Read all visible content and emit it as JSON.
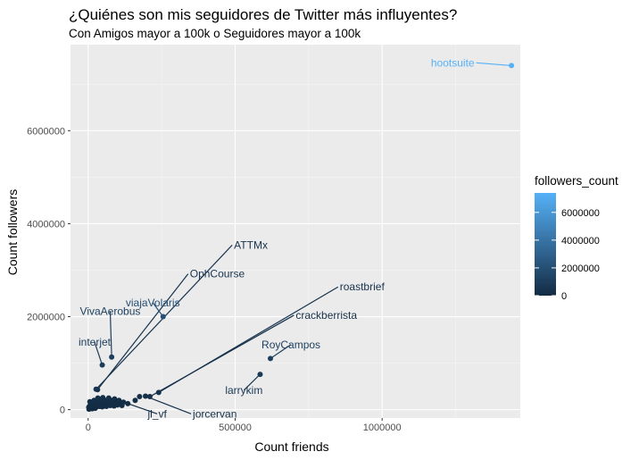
{
  "chart_data": {
    "type": "scatter",
    "title": "¿Quiénes son mis seguidores de Twitter más influyentes?",
    "subtitle": "Con Amigos mayor a 100k o Seguidores mayor a 100k",
    "xlabel": "Count friends",
    "ylabel": "Count followers",
    "xlim": [
      -60000,
      1470000
    ],
    "ylim": [
      -180000,
      7850000
    ],
    "x_ticks": [
      0,
      500000,
      1000000
    ],
    "x_tick_labels": [
      "0",
      "500000",
      "1000000"
    ],
    "y_ticks": [
      0,
      2000000,
      4000000,
      6000000
    ],
    "y_tick_labels": [
      "0",
      "2000000",
      "4000000",
      "6000000"
    ],
    "grid": true,
    "legend": {
      "title": "followers_count",
      "position": "right",
      "color_low": "#132B43",
      "color_high": "#56B1F7",
      "range": [
        0,
        7400000
      ],
      "ticks": [
        0,
        2000000,
        4000000,
        6000000
      ],
      "tick_labels": [
        "0",
        "2000000",
        "4000000",
        "6000000"
      ]
    },
    "points": [
      {
        "x": 1440000,
        "y": 7400000,
        "label": "hootsuite",
        "lx": 1320000,
        "ly": 7460000,
        "ha": "end"
      },
      {
        "x": 27000,
        "y": 440000,
        "label": "ATTMx",
        "lx": 490000,
        "ly": 3540000,
        "ha": "start"
      },
      {
        "x": 32000,
        "y": 430000,
        "label": "OphCourse",
        "lx": 340000,
        "ly": 2920000,
        "ha": "start"
      },
      {
        "x": 255000,
        "y": 2000000,
        "label": "viajaVolaris",
        "lx": 220000,
        "ly": 2300000,
        "ha": "middle"
      },
      {
        "x": 80000,
        "y": 1130000,
        "label": "VivaAerobus",
        "lx": 75000,
        "ly": 2120000,
        "ha": "middle"
      },
      {
        "x": 48000,
        "y": 960000,
        "label": "interjet",
        "lx": 22000,
        "ly": 1450000,
        "ha": "middle"
      },
      {
        "x": 240000,
        "y": 370000,
        "label": "roastbrief",
        "lx": 850000,
        "ly": 2640000,
        "ha": "start"
      },
      {
        "x": 210000,
        "y": 280000,
        "label": "crackberrista",
        "lx": 700000,
        "ly": 2030000,
        "ha": "start"
      },
      {
        "x": 620000,
        "y": 1100000,
        "label": "RoyCampos",
        "lx": 690000,
        "ly": 1400000,
        "ha": "middle"
      },
      {
        "x": 585000,
        "y": 760000,
        "label": "larrykim",
        "lx": 530000,
        "ly": 420000,
        "ha": "middle"
      },
      {
        "x": 135000,
        "y": 130000,
        "label": "jl_vf",
        "lx": 235000,
        "ly": -90000,
        "ha": "middle"
      },
      {
        "x": 195000,
        "y": 290000,
        "label": "jorcervan",
        "lx": 350000,
        "ly": -90000,
        "ha": "start"
      },
      {
        "x": 2000,
        "y": 50000
      },
      {
        "x": 5000,
        "y": 80000
      },
      {
        "x": 8000,
        "y": 30000
      },
      {
        "x": 10000,
        "y": 120000
      },
      {
        "x": 12000,
        "y": 60000
      },
      {
        "x": 15000,
        "y": 150000
      },
      {
        "x": 18000,
        "y": 40000
      },
      {
        "x": 20000,
        "y": 200000
      },
      {
        "x": 22000,
        "y": 90000
      },
      {
        "x": 25000,
        "y": 130000
      },
      {
        "x": 28000,
        "y": 60000
      },
      {
        "x": 30000,
        "y": 180000
      },
      {
        "x": 33000,
        "y": 250000
      },
      {
        "x": 35000,
        "y": 100000
      },
      {
        "x": 38000,
        "y": 70000
      },
      {
        "x": 40000,
        "y": 140000
      },
      {
        "x": 42000,
        "y": 220000
      },
      {
        "x": 45000,
        "y": 110000
      },
      {
        "x": 48000,
        "y": 60000
      },
      {
        "x": 50000,
        "y": 260000
      },
      {
        "x": 52000,
        "y": 160000
      },
      {
        "x": 55000,
        "y": 90000
      },
      {
        "x": 58000,
        "y": 200000
      },
      {
        "x": 60000,
        "y": 130000
      },
      {
        "x": 62000,
        "y": 70000
      },
      {
        "x": 65000,
        "y": 180000
      },
      {
        "x": 68000,
        "y": 110000
      },
      {
        "x": 70000,
        "y": 250000
      },
      {
        "x": 72000,
        "y": 150000
      },
      {
        "x": 75000,
        "y": 90000
      },
      {
        "x": 78000,
        "y": 200000
      },
      {
        "x": 80000,
        "y": 120000
      },
      {
        "x": 85000,
        "y": 170000
      },
      {
        "x": 88000,
        "y": 80000
      },
      {
        "x": 90000,
        "y": 230000
      },
      {
        "x": 95000,
        "y": 140000
      },
      {
        "x": 100000,
        "y": 100000
      },
      {
        "x": 105000,
        "y": 200000
      },
      {
        "x": 110000,
        "y": 130000
      },
      {
        "x": 115000,
        "y": 90000
      },
      {
        "x": 120000,
        "y": 160000
      },
      {
        "x": 160000,
        "y": 200000
      },
      {
        "x": 175000,
        "y": 280000
      },
      {
        "x": 3000,
        "y": 10000
      },
      {
        "x": 6000,
        "y": 170000
      },
      {
        "x": 14000,
        "y": 20000
      },
      {
        "x": 24000,
        "y": 30000
      }
    ]
  }
}
